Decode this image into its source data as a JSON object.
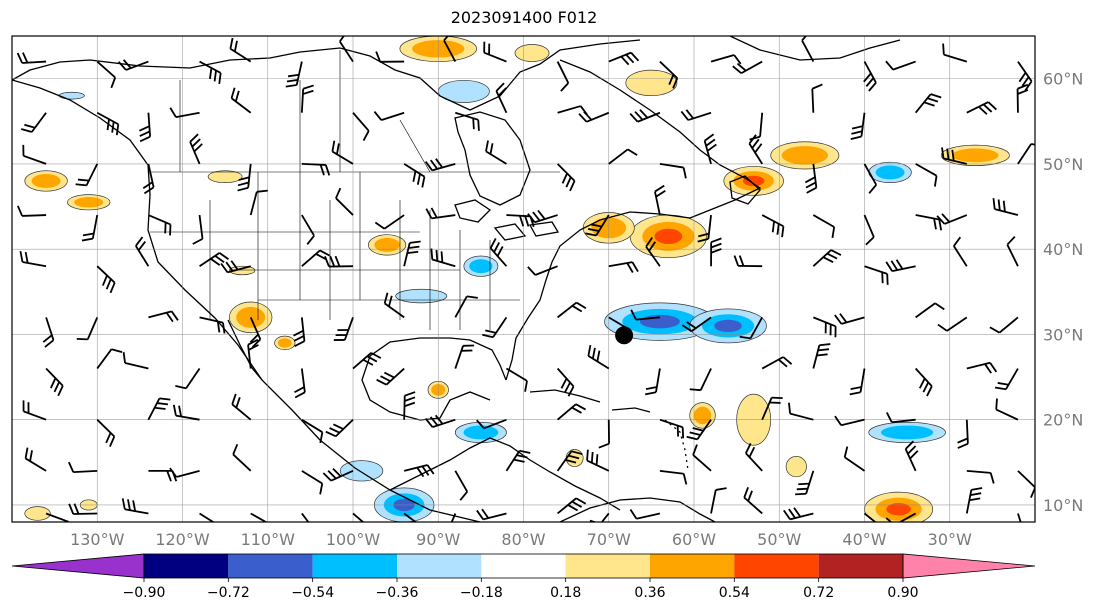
{
  "title": "2023091400 F012",
  "map": {
    "lon_range": [
      -140,
      -20
    ],
    "lat_range": [
      8,
      65
    ],
    "lon_ticks": [
      {
        "value": -130,
        "label": "130°W"
      },
      {
        "value": -120,
        "label": "120°W"
      },
      {
        "value": -110,
        "label": "110°W"
      },
      {
        "value": -100,
        "label": "100°W"
      },
      {
        "value": -90,
        "label": "90°W"
      },
      {
        "value": -80,
        "label": "80°W"
      },
      {
        "value": -70,
        "label": "70°W"
      },
      {
        "value": -60,
        "label": "60°W"
      },
      {
        "value": -50,
        "label": "50°W"
      },
      {
        "value": -40,
        "label": "40°W"
      },
      {
        "value": -30,
        "label": "30°W"
      }
    ],
    "lat_ticks": [
      {
        "value": 60,
        "label": "60°N"
      },
      {
        "value": 50,
        "label": "50°N"
      },
      {
        "value": 40,
        "label": "40°N"
      },
      {
        "value": 30,
        "label": "30°N"
      },
      {
        "value": 20,
        "label": "20°N"
      },
      {
        "value": 10,
        "label": "10°N"
      }
    ],
    "grid": true,
    "storm_marker": {
      "lon": -68.2,
      "lat": 29.9
    }
  },
  "colorbar": {
    "levels": [
      "−0.90",
      "−0.72",
      "−0.54",
      "−0.36",
      "−0.18",
      "0.18",
      "0.36",
      "0.54",
      "0.72",
      "0.90"
    ],
    "colors": [
      "#9932cc",
      "#000080",
      "#3a5fcd",
      "#00bfff",
      "#b0e2ff",
      "#ffffff",
      "#ffe68c",
      "#ffa500",
      "#ff4500",
      "#b22222",
      "#ff82ab"
    ],
    "extend": "both"
  },
  "anomalies": [
    {
      "lon": -64,
      "lat": 31.5,
      "rx": 6.5,
      "ry": 2.2,
      "sign": -1,
      "level": 3
    },
    {
      "lon": -56,
      "lat": 31,
      "rx": 4.5,
      "ry": 2,
      "sign": -1,
      "level": 3
    },
    {
      "lon": -85,
      "lat": 38,
      "rx": 2,
      "ry": 1.2,
      "sign": -1,
      "level": 2
    },
    {
      "lon": -92,
      "lat": 34.5,
      "rx": 3,
      "ry": 0.8,
      "sign": -1,
      "level": 1
    },
    {
      "lon": -99,
      "lat": 14,
      "rx": 2.5,
      "ry": 1.2,
      "sign": -1,
      "level": 1
    },
    {
      "lon": -94,
      "lat": 10,
      "rx": 3.5,
      "ry": 2,
      "sign": -1,
      "level": 3
    },
    {
      "lon": -85,
      "lat": 18.5,
      "rx": 3,
      "ry": 1.2,
      "sign": -1,
      "level": 2
    },
    {
      "lon": -37,
      "lat": 49,
      "rx": 2.5,
      "ry": 1.2,
      "sign": -1,
      "level": 2
    },
    {
      "lon": -35,
      "lat": 18.5,
      "rx": 4.5,
      "ry": 1.2,
      "sign": -1,
      "level": 2
    },
    {
      "lon": -87,
      "lat": 58.5,
      "rx": 3,
      "ry": 1.3,
      "sign": -1,
      "level": 1
    },
    {
      "lon": -133,
      "lat": 58,
      "rx": 1.5,
      "ry": 0.4,
      "sign": -1,
      "level": 1
    },
    {
      "lon": -63,
      "lat": 41.5,
      "rx": 4.5,
      "ry": 2.5,
      "sign": 1,
      "level": 3
    },
    {
      "lon": -70,
      "lat": 42.5,
      "rx": 3,
      "ry": 1.8,
      "sign": 1,
      "level": 2
    },
    {
      "lon": -53,
      "lat": 48,
      "rx": 3.5,
      "ry": 1.7,
      "sign": 1,
      "level": 3
    },
    {
      "lon": -47,
      "lat": 51,
      "rx": 4,
      "ry": 1.6,
      "sign": 1,
      "level": 2
    },
    {
      "lon": -27,
      "lat": 51,
      "rx": 4,
      "ry": 1.2,
      "sign": 1,
      "level": 2
    },
    {
      "lon": -53,
      "lat": 20,
      "rx": 2,
      "ry": 3,
      "sign": 1,
      "level": 1
    },
    {
      "lon": -59,
      "lat": 20.5,
      "rx": 1.5,
      "ry": 1.5,
      "sign": 1,
      "level": 2
    },
    {
      "lon": -36,
      "lat": 9.5,
      "rx": 4,
      "ry": 2,
      "sign": 1,
      "level": 3
    },
    {
      "lon": -136,
      "lat": 48,
      "rx": 2.5,
      "ry": 1.2,
      "sign": 1,
      "level": 2
    },
    {
      "lon": -131,
      "lat": 45.5,
      "rx": 2.5,
      "ry": 0.9,
      "sign": 1,
      "level": 2
    },
    {
      "lon": -115,
      "lat": 48.5,
      "rx": 2,
      "ry": 0.7,
      "sign": 1,
      "level": 1
    },
    {
      "lon": -112,
      "lat": 32,
      "rx": 2.5,
      "ry": 1.8,
      "sign": 1,
      "level": 2
    },
    {
      "lon": -108,
      "lat": 29,
      "rx": 1.2,
      "ry": 0.8,
      "sign": 1,
      "level": 2
    },
    {
      "lon": -113,
      "lat": 37.5,
      "rx": 1.5,
      "ry": 0.5,
      "sign": 1,
      "level": 1
    },
    {
      "lon": -96,
      "lat": 40.5,
      "rx": 2.2,
      "ry": 1.2,
      "sign": 1,
      "level": 2
    },
    {
      "lon": -90,
      "lat": 23.5,
      "rx": 1.2,
      "ry": 1,
      "sign": 1,
      "level": 2
    },
    {
      "lon": -90,
      "lat": 63.5,
      "rx": 4.5,
      "ry": 1.5,
      "sign": 1,
      "level": 2
    },
    {
      "lon": -79,
      "lat": 63,
      "rx": 2,
      "ry": 1,
      "sign": 1,
      "level": 1
    },
    {
      "lon": -65,
      "lat": 59.5,
      "rx": 3,
      "ry": 1.5,
      "sign": 1,
      "level": 1
    },
    {
      "lon": -74,
      "lat": 15.5,
      "rx": 1,
      "ry": 1,
      "sign": 1,
      "level": 1
    },
    {
      "lon": -48,
      "lat": 14.5,
      "rx": 1.2,
      "ry": 1.2,
      "sign": 1,
      "level": 1
    },
    {
      "lon": -137,
      "lat": 9,
      "rx": 1.5,
      "ry": 0.8,
      "sign": 1,
      "level": 1
    },
    {
      "lon": -131,
      "lat": 10,
      "rx": 1,
      "ry": 0.6,
      "sign": 1,
      "level": 1
    }
  ],
  "wind_field": {
    "rows": [
      62,
      56,
      50,
      44,
      38,
      32,
      26,
      20,
      14,
      9
    ],
    "cols_start": -136,
    "cols_step": 6,
    "cols_end": -22
  }
}
